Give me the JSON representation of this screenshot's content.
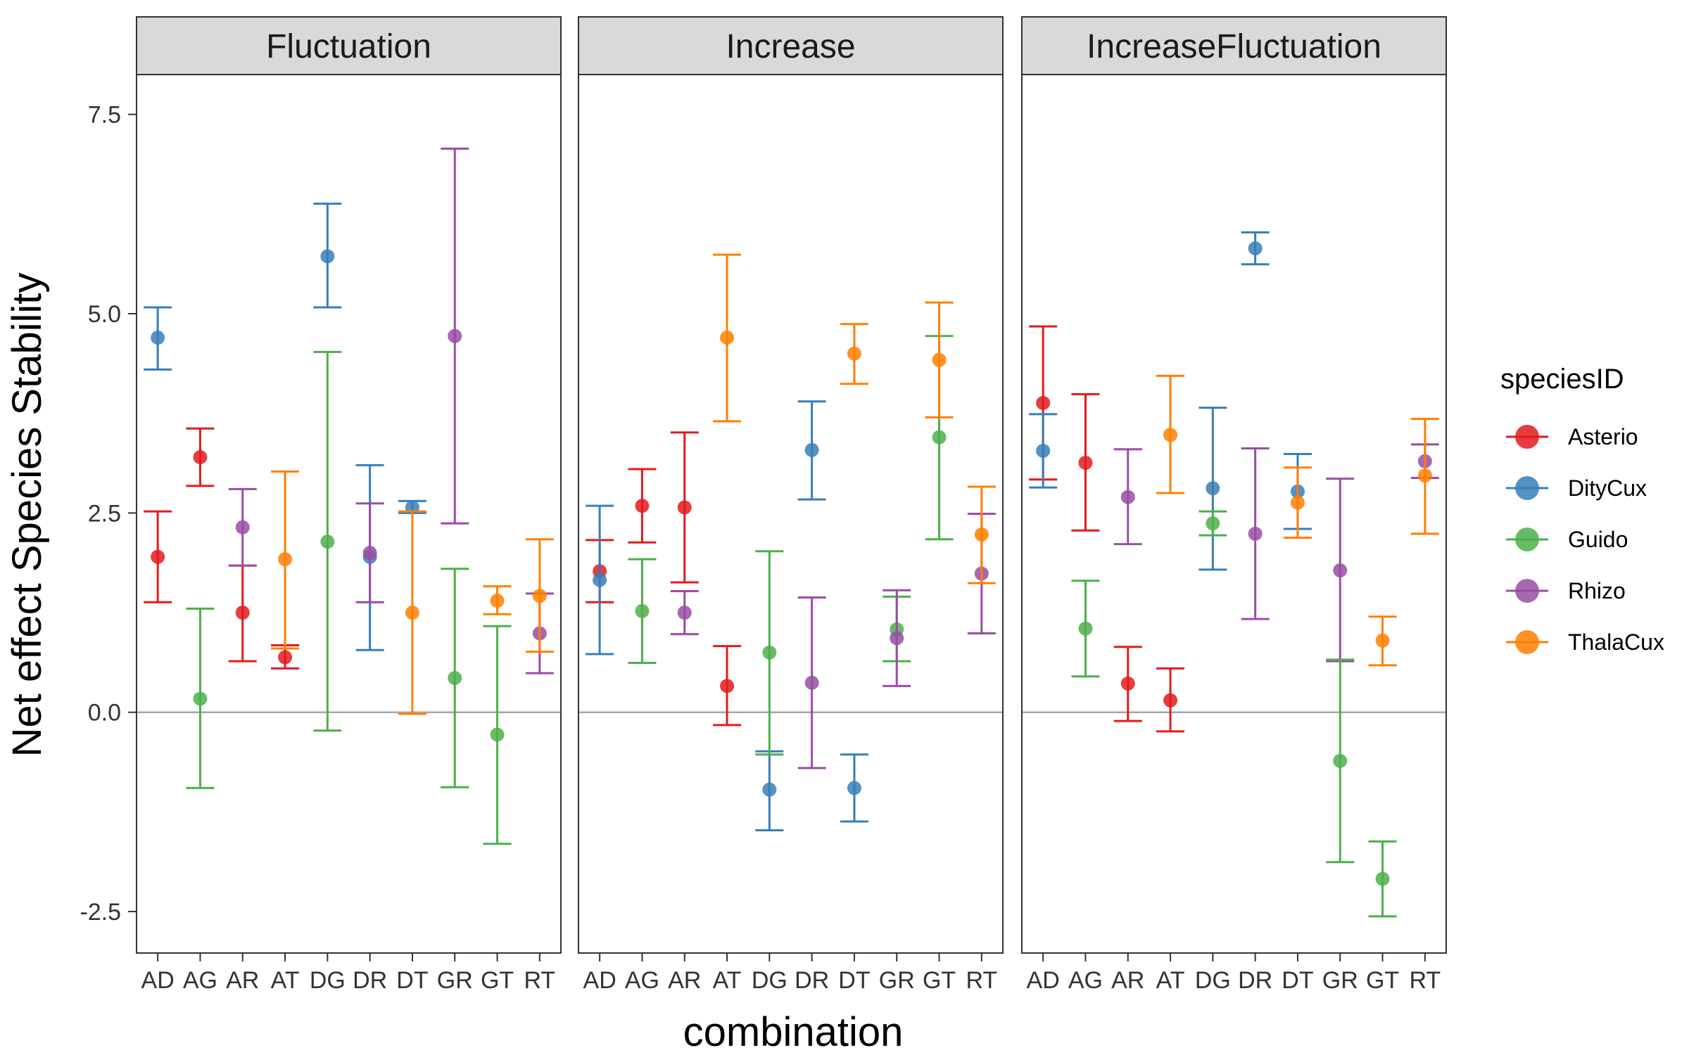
{
  "chart_data": {
    "type": "scatter",
    "xlabel": "combination",
    "ylabel": "Net effect Species Stability",
    "ylim": [
      -3.02,
      8.0
    ],
    "yticks": [
      -2.5,
      0.0,
      2.5,
      5.0,
      7.5
    ],
    "ytick_labels": [
      "-2.5",
      "0.0",
      "2.5",
      "5.0",
      "7.5"
    ],
    "categories": [
      "AD",
      "AG",
      "AR",
      "AT",
      "DG",
      "DR",
      "DT",
      "GR",
      "GT",
      "RT"
    ],
    "reference_line_y": 0,
    "grid": false,
    "legend": {
      "title": "speciesID",
      "placement": "right",
      "entries": [
        "Asterio",
        "DityCux",
        "Guido",
        "Rhizo",
        "ThalaCux"
      ]
    },
    "colors": {
      "Asterio": "#e41a1c",
      "DityCux": "#377eb8",
      "Guido": "#4daf4a",
      "Rhizo": "#984ea3",
      "ThalaCux": "#ff7f00",
      "strip_fill": "#d9d9d9",
      "zero_line": "#a6a6a6"
    },
    "panels": [
      {
        "facet": "Fluctuation",
        "points": [
          {
            "x": "AD",
            "series": "Asterio",
            "y": 1.95,
            "ymin": 1.38,
            "ymax": 2.52
          },
          {
            "x": "AD",
            "series": "DityCux",
            "y": 4.7,
            "ymin": 4.3,
            "ymax": 5.08
          },
          {
            "x": "AG",
            "series": "Asterio",
            "y": 3.2,
            "ymin": 2.84,
            "ymax": 3.56
          },
          {
            "x": "AG",
            "series": "Guido",
            "y": 0.17,
            "ymin": -0.95,
            "ymax": 1.3
          },
          {
            "x": "AR",
            "series": "Asterio",
            "y": 1.25,
            "ymin": 0.64,
            "ymax": 1.84
          },
          {
            "x": "AR",
            "series": "Rhizo",
            "y": 2.32,
            "ymin": 1.84,
            "ymax": 2.8
          },
          {
            "x": "AT",
            "series": "Asterio",
            "y": 0.69,
            "ymin": 0.55,
            "ymax": 0.84
          },
          {
            "x": "AT",
            "series": "ThalaCux",
            "y": 1.92,
            "ymin": 0.8,
            "ymax": 3.02
          },
          {
            "x": "DG",
            "series": "DityCux",
            "y": 5.72,
            "ymin": 5.08,
            "ymax": 6.38
          },
          {
            "x": "DG",
            "series": "Guido",
            "y": 2.14,
            "ymin": -0.23,
            "ymax": 4.52
          },
          {
            "x": "DR",
            "series": "DityCux",
            "y": 1.95,
            "ymin": 0.78,
            "ymax": 3.1
          },
          {
            "x": "DR",
            "series": "Rhizo",
            "y": 2.0,
            "ymin": 1.38,
            "ymax": 2.62
          },
          {
            "x": "DT",
            "series": "DityCux",
            "y": 2.57,
            "ymin": 2.5,
            "ymax": 2.65
          },
          {
            "x": "DT",
            "series": "ThalaCux",
            "y": 1.25,
            "ymin": -0.02,
            "ymax": 2.52
          },
          {
            "x": "GR",
            "series": "Rhizo",
            "y": 4.72,
            "ymin": 2.37,
            "ymax": 7.07
          },
          {
            "x": "GR",
            "series": "Guido",
            "y": 0.43,
            "ymin": -0.94,
            "ymax": 1.8
          },
          {
            "x": "GT",
            "series": "Guido",
            "y": -0.28,
            "ymin": -1.65,
            "ymax": 1.08
          },
          {
            "x": "GT",
            "series": "ThalaCux",
            "y": 1.4,
            "ymin": 1.23,
            "ymax": 1.58
          },
          {
            "x": "RT",
            "series": "Rhizo",
            "y": 0.99,
            "ymin": 0.49,
            "ymax": 1.49
          },
          {
            "x": "RT",
            "series": "ThalaCux",
            "y": 1.46,
            "ymin": 0.76,
            "ymax": 2.17
          }
        ]
      },
      {
        "facet": "Increase",
        "points": [
          {
            "x": "AD",
            "series": "Asterio",
            "y": 1.77,
            "ymin": 1.38,
            "ymax": 2.16
          },
          {
            "x": "AD",
            "series": "DityCux",
            "y": 1.66,
            "ymin": 0.73,
            "ymax": 2.59
          },
          {
            "x": "AG",
            "series": "Asterio",
            "y": 2.59,
            "ymin": 2.13,
            "ymax": 3.05
          },
          {
            "x": "AG",
            "series": "Guido",
            "y": 1.27,
            "ymin": 0.62,
            "ymax": 1.92
          },
          {
            "x": "AR",
            "series": "Asterio",
            "y": 2.57,
            "ymin": 1.63,
            "ymax": 3.51
          },
          {
            "x": "AR",
            "series": "Rhizo",
            "y": 1.25,
            "ymin": 0.98,
            "ymax": 1.52
          },
          {
            "x": "AT",
            "series": "Asterio",
            "y": 0.33,
            "ymin": -0.16,
            "ymax": 0.83
          },
          {
            "x": "AT",
            "series": "ThalaCux",
            "y": 4.7,
            "ymin": 3.65,
            "ymax": 5.74
          },
          {
            "x": "DG",
            "series": "DityCux",
            "y": -0.97,
            "ymin": -1.48,
            "ymax": -0.49
          },
          {
            "x": "DG",
            "series": "Guido",
            "y": 0.75,
            "ymin": -0.53,
            "ymax": 2.02
          },
          {
            "x": "DR",
            "series": "DityCux",
            "y": 3.29,
            "ymin": 2.67,
            "ymax": 3.9
          },
          {
            "x": "DR",
            "series": "Rhizo",
            "y": 0.37,
            "ymin": -0.7,
            "ymax": 1.44
          },
          {
            "x": "DT",
            "series": "DityCux",
            "y": -0.95,
            "ymin": -1.37,
            "ymax": -0.53
          },
          {
            "x": "DT",
            "series": "ThalaCux",
            "y": 4.5,
            "ymin": 4.12,
            "ymax": 4.87
          },
          {
            "x": "GR",
            "series": "Guido",
            "y": 1.04,
            "ymin": 0.64,
            "ymax": 1.45
          },
          {
            "x": "GR",
            "series": "Rhizo",
            "y": 0.93,
            "ymin": 0.33,
            "ymax": 1.53
          },
          {
            "x": "GT",
            "series": "Guido",
            "y": 3.45,
            "ymin": 2.17,
            "ymax": 4.72
          },
          {
            "x": "GT",
            "series": "ThalaCux",
            "y": 4.42,
            "ymin": 3.7,
            "ymax": 5.14
          },
          {
            "x": "RT",
            "series": "Rhizo",
            "y": 1.74,
            "ymin": 0.99,
            "ymax": 2.49
          },
          {
            "x": "RT",
            "series": "ThalaCux",
            "y": 2.23,
            "ymin": 1.62,
            "ymax": 2.83
          }
        ]
      },
      {
        "facet": "IncreaseFluctuation",
        "points": [
          {
            "x": "AD",
            "series": "Asterio",
            "y": 3.88,
            "ymin": 2.92,
            "ymax": 4.84
          },
          {
            "x": "AD",
            "series": "DityCux",
            "y": 3.28,
            "ymin": 2.82,
            "ymax": 3.74
          },
          {
            "x": "AG",
            "series": "Asterio",
            "y": 3.13,
            "ymin": 2.28,
            "ymax": 3.99
          },
          {
            "x": "AG",
            "series": "Guido",
            "y": 1.05,
            "ymin": 0.45,
            "ymax": 1.65
          },
          {
            "x": "AR",
            "series": "Rhizo",
            "y": 2.7,
            "ymin": 2.11,
            "ymax": 3.3
          },
          {
            "x": "AR",
            "series": "Asterio",
            "y": 0.36,
            "ymin": -0.11,
            "ymax": 0.82
          },
          {
            "x": "AT",
            "series": "Asterio",
            "y": 0.15,
            "ymin": -0.24,
            "ymax": 0.55
          },
          {
            "x": "AT",
            "series": "ThalaCux",
            "y": 3.48,
            "ymin": 2.75,
            "ymax": 4.22
          },
          {
            "x": "DG",
            "series": "DityCux",
            "y": 2.81,
            "ymin": 1.79,
            "ymax": 3.82
          },
          {
            "x": "DG",
            "series": "Guido",
            "y": 2.37,
            "ymin": 2.22,
            "ymax": 2.52
          },
          {
            "x": "DR",
            "series": "DityCux",
            "y": 5.82,
            "ymin": 5.62,
            "ymax": 6.02
          },
          {
            "x": "DR",
            "series": "Rhizo",
            "y": 2.24,
            "ymin": 1.17,
            "ymax": 3.31
          },
          {
            "x": "DT",
            "series": "DityCux",
            "y": 2.77,
            "ymin": 2.3,
            "ymax": 3.24
          },
          {
            "x": "DT",
            "series": "ThalaCux",
            "y": 2.63,
            "ymin": 2.19,
            "ymax": 3.07
          },
          {
            "x": "GR",
            "series": "Rhizo",
            "y": 1.78,
            "ymin": 0.64,
            "ymax": 2.93
          },
          {
            "x": "GR",
            "series": "Guido",
            "y": -0.61,
            "ymin": -1.88,
            "ymax": 0.66
          },
          {
            "x": "GT",
            "series": "ThalaCux",
            "y": 0.9,
            "ymin": 0.59,
            "ymax": 1.2
          },
          {
            "x": "GT",
            "series": "Guido",
            "y": -2.09,
            "ymin": -2.56,
            "ymax": -1.62
          },
          {
            "x": "RT",
            "series": "Rhizo",
            "y": 3.15,
            "ymin": 2.94,
            "ymax": 3.36
          },
          {
            "x": "RT",
            "series": "ThalaCux",
            "y": 2.97,
            "ymin": 2.24,
            "ymax": 3.68
          }
        ]
      }
    ]
  }
}
